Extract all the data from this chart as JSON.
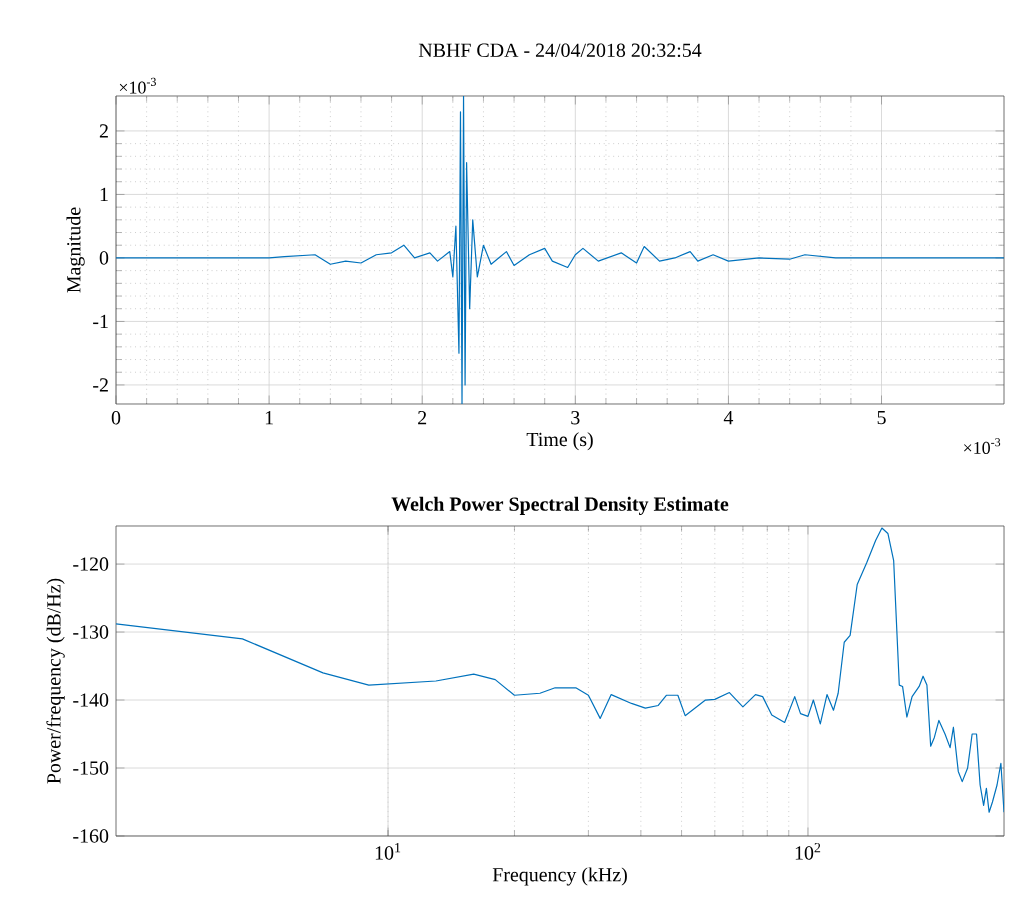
{
  "chart_data": [
    {
      "type": "line",
      "title": "NBHF CDA - 24/04/2018 20:32:54",
      "xlabel": "Time (s)",
      "ylabel": "Magnitude",
      "x": [
        0,
        0.5,
        1.0,
        1.1,
        1.3,
        1.4,
        1.5,
        1.6,
        1.7,
        1.8,
        1.88,
        1.95,
        2.05,
        2.1,
        2.18,
        2.2,
        2.22,
        2.24,
        2.25,
        2.26,
        2.27,
        2.28,
        2.29,
        2.31,
        2.33,
        2.36,
        2.4,
        2.45,
        2.55,
        2.6,
        2.7,
        2.8,
        2.85,
        2.95,
        3.0,
        3.05,
        3.15,
        3.3,
        3.4,
        3.45,
        3.55,
        3.65,
        3.75,
        3.8,
        3.9,
        4.0,
        4.2,
        4.4,
        4.5,
        4.7,
        5.0,
        5.8
      ],
      "series": [
        {
          "color": "#0072bd",
          "values": [
            0,
            0,
            0,
            0.02,
            0.05,
            -0.1,
            -0.05,
            -0.08,
            0.05,
            0.08,
            0.2,
            0.0,
            0.08,
            -0.05,
            0.1,
            -0.3,
            0.5,
            -1.5,
            2.3,
            -2.3,
            2.55,
            -2.0,
            1.5,
            -0.8,
            0.6,
            -0.3,
            0.2,
            -0.1,
            0.1,
            -0.12,
            0.05,
            0.15,
            -0.05,
            -0.15,
            0.05,
            0.15,
            -0.05,
            0.08,
            -0.08,
            0.18,
            -0.05,
            0.0,
            0.1,
            -0.05,
            0.05,
            -0.05,
            0.0,
            -0.02,
            0.05,
            0.0,
            0.0,
            0.0
          ]
        }
      ],
      "xlim": [
        0,
        5.8
      ],
      "ylim": [
        -2.3,
        2.55
      ],
      "xticks": [
        0,
        1,
        2,
        3,
        4,
        5
      ],
      "yticks": [
        -2,
        -1,
        0,
        1,
        2
      ],
      "grid": true,
      "annotations": [
        "×10$^{-3}$",
        "×10$^{-3}$"
      ]
    },
    {
      "type": "line",
      "title": "Welch Power Spectral Density Estimate",
      "xlabel": "Frequency (kHz)",
      "ylabel": "Power/frequency (dB/Hz)",
      "x": [
        2.25,
        4.5,
        7,
        9,
        13,
        16,
        18,
        20,
        23,
        25,
        28,
        30,
        32,
        34,
        38,
        41,
        44,
        46,
        49,
        51,
        57,
        60,
        65,
        70,
        75,
        78,
        82,
        88,
        93,
        96,
        100,
        103,
        107,
        111,
        115,
        118,
        122,
        126,
        131,
        138,
        145,
        150,
        155,
        160,
        165,
        168,
        172,
        177,
        184,
        188,
        192,
        196,
        200,
        205,
        212,
        218,
        222,
        228,
        233,
        240,
        246,
        252,
        257,
        262,
        266,
        270,
        275,
        282,
        288,
        293
      ],
      "series": [
        {
          "color": "#0072bd",
          "values": [
            -128.8,
            -131,
            -136,
            -137.8,
            -137.2,
            -136.2,
            -137,
            -139.3,
            -139,
            -138.2,
            -138.2,
            -139.3,
            -142.7,
            -139.2,
            -140.5,
            -141.2,
            -140.8,
            -139.3,
            -139.3,
            -142.3,
            -140,
            -139.9,
            -138.9,
            -141,
            -139.2,
            -139.5,
            -142.2,
            -143.3,
            -139.5,
            -142,
            -142.4,
            -140,
            -143.5,
            -139.2,
            -141.5,
            -139,
            -131.5,
            -130.5,
            -123,
            -119.8,
            -116.5,
            -114.7,
            -115.5,
            -119.5,
            -137.8,
            -138,
            -142.5,
            -139.5,
            -138,
            -136.5,
            -137.8,
            -146.8,
            -145.5,
            -143,
            -145,
            -147,
            -144,
            -150.5,
            -152,
            -150,
            -145,
            -145,
            -152.5,
            -155.5,
            -153,
            -156.5,
            -155,
            -152.5,
            -149.3,
            -156.5
          ]
        }
      ],
      "xlim": [
        2.25,
        293
      ],
      "ylim": [
        -160,
        -114.4
      ],
      "log": "x",
      "xticks": [
        {
          "value": 10,
          "label": "10$^{1}$"
        },
        {
          "value": 100,
          "label": "10$^{2}$"
        }
      ],
      "yticks": [
        -160,
        -150,
        -140,
        -130,
        -120
      ],
      "grid": true
    }
  ]
}
